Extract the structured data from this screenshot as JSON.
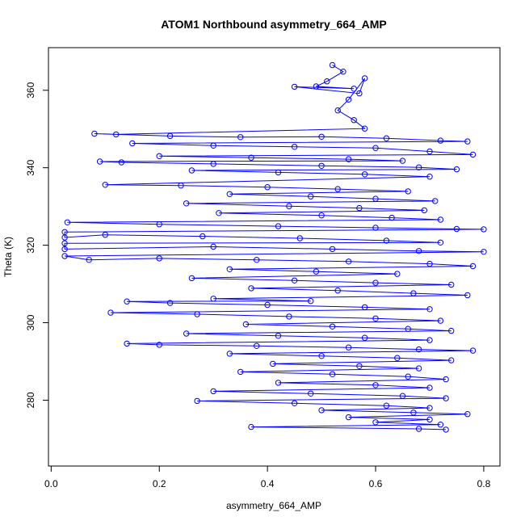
{
  "chart_data": {
    "type": "scatter",
    "title": "ATOM1 Northbound asymmetry_664_AMP",
    "xlabel": "asymmetry_664_AMP",
    "ylabel": "Theta (K)",
    "xlim": [
      -0.005,
      0.83
    ],
    "ylim": [
      263,
      371
    ],
    "x_ticks": [
      "0.0",
      "0.2",
      "0.4",
      "0.6",
      "0.8"
    ],
    "x_tick_values": [
      0.0,
      0.2,
      0.4,
      0.6,
      0.8
    ],
    "y_ticks": [
      "280",
      "300",
      "320",
      "340",
      "360"
    ],
    "y_tick_values": [
      280,
      300,
      320,
      340,
      360
    ],
    "marker": "open-circle",
    "connected": true,
    "color": "#0000ff",
    "grid": false,
    "legend": "none",
    "series": [
      {
        "values": [
          [
            0.52,
            366.5
          ],
          [
            0.54,
            364.8
          ],
          [
            0.51,
            362.3
          ],
          [
            0.49,
            361.0
          ],
          [
            0.56,
            360.4
          ],
          [
            0.45,
            360.9
          ],
          [
            0.57,
            359.2
          ],
          [
            0.58,
            363.1
          ],
          [
            0.55,
            357.6
          ],
          [
            0.53,
            354.8
          ],
          [
            0.56,
            352.3
          ],
          [
            0.58,
            350.1
          ],
          [
            0.12,
            348.6
          ],
          [
            0.08,
            348.8
          ],
          [
            0.22,
            348.2
          ],
          [
            0.35,
            347.9
          ],
          [
            0.5,
            348.0
          ],
          [
            0.62,
            347.6
          ],
          [
            0.72,
            347.0
          ],
          [
            0.77,
            346.8
          ],
          [
            0.15,
            346.3
          ],
          [
            0.3,
            345.7
          ],
          [
            0.45,
            345.4
          ],
          [
            0.6,
            345.1
          ],
          [
            0.7,
            344.2
          ],
          [
            0.78,
            343.4
          ],
          [
            0.2,
            343.0
          ],
          [
            0.37,
            342.6
          ],
          [
            0.55,
            342.2
          ],
          [
            0.65,
            341.8
          ],
          [
            0.09,
            341.6
          ],
          [
            0.13,
            341.4
          ],
          [
            0.3,
            341.0
          ],
          [
            0.5,
            340.5
          ],
          [
            0.68,
            340.1
          ],
          [
            0.75,
            339.6
          ],
          [
            0.26,
            339.3
          ],
          [
            0.42,
            338.8
          ],
          [
            0.58,
            338.3
          ],
          [
            0.7,
            337.7
          ],
          [
            0.1,
            335.6
          ],
          [
            0.24,
            335.4
          ],
          [
            0.4,
            335.0
          ],
          [
            0.53,
            334.5
          ],
          [
            0.66,
            333.9
          ],
          [
            0.33,
            333.2
          ],
          [
            0.48,
            332.6
          ],
          [
            0.6,
            332.0
          ],
          [
            0.71,
            331.4
          ],
          [
            0.25,
            330.8
          ],
          [
            0.44,
            330.1
          ],
          [
            0.57,
            329.6
          ],
          [
            0.69,
            329.0
          ],
          [
            0.31,
            328.3
          ],
          [
            0.5,
            327.7
          ],
          [
            0.63,
            327.1
          ],
          [
            0.72,
            326.6
          ],
          [
            0.03,
            325.9
          ],
          [
            0.2,
            325.4
          ],
          [
            0.42,
            324.9
          ],
          [
            0.6,
            324.5
          ],
          [
            0.75,
            324.2
          ],
          [
            0.8,
            324.1
          ],
          [
            0.025,
            323.4
          ],
          [
            0.025,
            322.0
          ],
          [
            0.1,
            322.7
          ],
          [
            0.28,
            322.3
          ],
          [
            0.46,
            321.8
          ],
          [
            0.62,
            321.2
          ],
          [
            0.72,
            320.7
          ],
          [
            0.025,
            320.5
          ],
          [
            0.025,
            319.0
          ],
          [
            0.3,
            319.6
          ],
          [
            0.52,
            319.0
          ],
          [
            0.68,
            318.5
          ],
          [
            0.8,
            318.3
          ],
          [
            0.025,
            317.2
          ],
          [
            0.07,
            316.2
          ],
          [
            0.2,
            316.6
          ],
          [
            0.38,
            316.2
          ],
          [
            0.55,
            315.8
          ],
          [
            0.7,
            315.2
          ],
          [
            0.78,
            314.6
          ],
          [
            0.33,
            313.8
          ],
          [
            0.49,
            313.2
          ],
          [
            0.64,
            312.6
          ],
          [
            0.26,
            311.5
          ],
          [
            0.45,
            310.9
          ],
          [
            0.6,
            310.3
          ],
          [
            0.74,
            309.8
          ],
          [
            0.37,
            308.9
          ],
          [
            0.53,
            308.3
          ],
          [
            0.67,
            307.6
          ],
          [
            0.77,
            307.1
          ],
          [
            0.3,
            306.2
          ],
          [
            0.48,
            305.6
          ],
          [
            0.14,
            305.5
          ],
          [
            0.22,
            305.1
          ],
          [
            0.4,
            304.6
          ],
          [
            0.58,
            304.0
          ],
          [
            0.7,
            303.5
          ],
          [
            0.11,
            302.6
          ],
          [
            0.27,
            302.2
          ],
          [
            0.44,
            301.6
          ],
          [
            0.6,
            301.1
          ],
          [
            0.72,
            300.5
          ],
          [
            0.36,
            299.6
          ],
          [
            0.52,
            299.0
          ],
          [
            0.66,
            298.4
          ],
          [
            0.74,
            297.9
          ],
          [
            0.25,
            297.2
          ],
          [
            0.42,
            296.6
          ],
          [
            0.58,
            296.1
          ],
          [
            0.7,
            295.5
          ],
          [
            0.14,
            294.6
          ],
          [
            0.2,
            294.3
          ],
          [
            0.38,
            294.0
          ],
          [
            0.55,
            293.6
          ],
          [
            0.68,
            293.1
          ],
          [
            0.78,
            292.8
          ],
          [
            0.33,
            292.0
          ],
          [
            0.5,
            291.4
          ],
          [
            0.64,
            290.9
          ],
          [
            0.74,
            290.3
          ],
          [
            0.41,
            289.4
          ],
          [
            0.57,
            288.8
          ],
          [
            0.68,
            288.2
          ],
          [
            0.35,
            287.3
          ],
          [
            0.52,
            286.7
          ],
          [
            0.66,
            286.1
          ],
          [
            0.73,
            285.4
          ],
          [
            0.42,
            284.5
          ],
          [
            0.6,
            283.9
          ],
          [
            0.7,
            283.2
          ],
          [
            0.3,
            282.3
          ],
          [
            0.48,
            281.7
          ],
          [
            0.65,
            281.1
          ],
          [
            0.73,
            280.5
          ],
          [
            0.27,
            279.8
          ],
          [
            0.45,
            279.2
          ],
          [
            0.62,
            278.6
          ],
          [
            0.7,
            278.0
          ],
          [
            0.5,
            277.4
          ],
          [
            0.67,
            276.8
          ],
          [
            0.77,
            276.4
          ],
          [
            0.55,
            275.6
          ],
          [
            0.7,
            275.0
          ],
          [
            0.6,
            274.3
          ],
          [
            0.72,
            273.7
          ],
          [
            0.37,
            273.1
          ],
          [
            0.68,
            272.6
          ],
          [
            0.73,
            272.4
          ]
        ]
      }
    ]
  }
}
